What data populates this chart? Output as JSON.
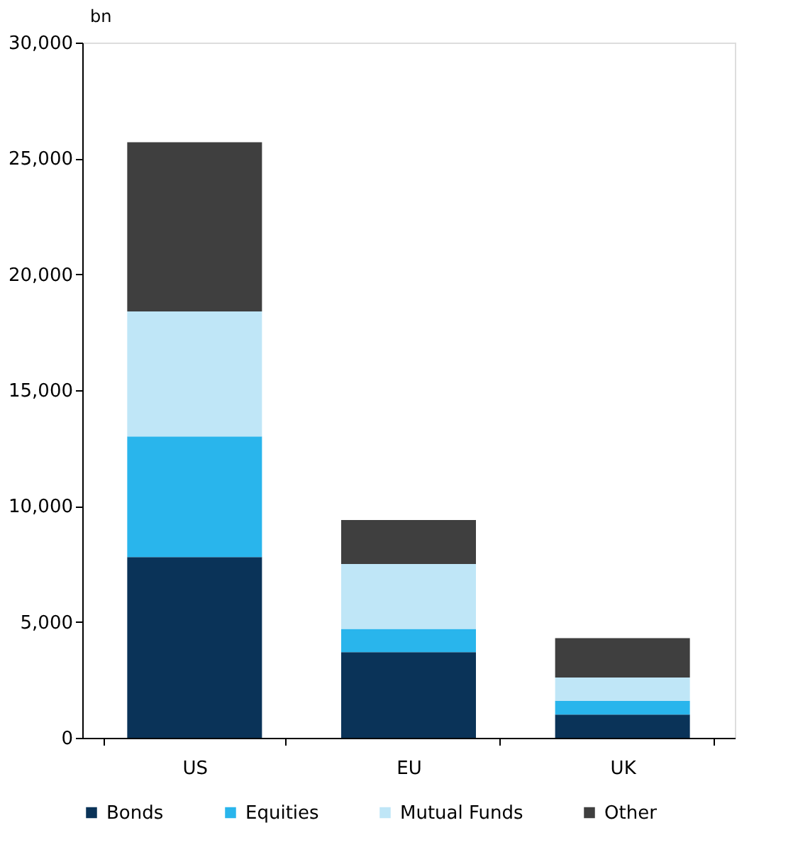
{
  "chart_data": {
    "type": "bar",
    "stacked": true,
    "ylabel": "bn",
    "categories": [
      "US",
      "EU",
      "UK"
    ],
    "series": [
      {
        "name": "Bonds",
        "color": "#0a3358",
        "values": [
          7800,
          3700,
          1000
        ]
      },
      {
        "name": "Equities",
        "color": "#29b5ec",
        "values": [
          5200,
          1000,
          600
        ]
      },
      {
        "name": "Mutual Funds",
        "color": "#bfe6f7",
        "values": [
          5400,
          2800,
          1000
        ]
      },
      {
        "name": "Other",
        "color": "#3f3f3f",
        "values": [
          7300,
          1900,
          1700
        ]
      }
    ],
    "ylim": [
      0,
      30000
    ],
    "yticks": [
      0,
      {
        "value": 5000,
        "label": "5,000"
      },
      {
        "value": 10000,
        "label": "10,000"
      },
      {
        "value": 15000,
        "label": "15,000"
      },
      {
        "value": 20000,
        "label": "20,000"
      },
      {
        "value": 25000,
        "label": "25,000"
      },
      {
        "value": 30000,
        "label": "30,000"
      }
    ],
    "grid": false,
    "legend": "bottom"
  }
}
